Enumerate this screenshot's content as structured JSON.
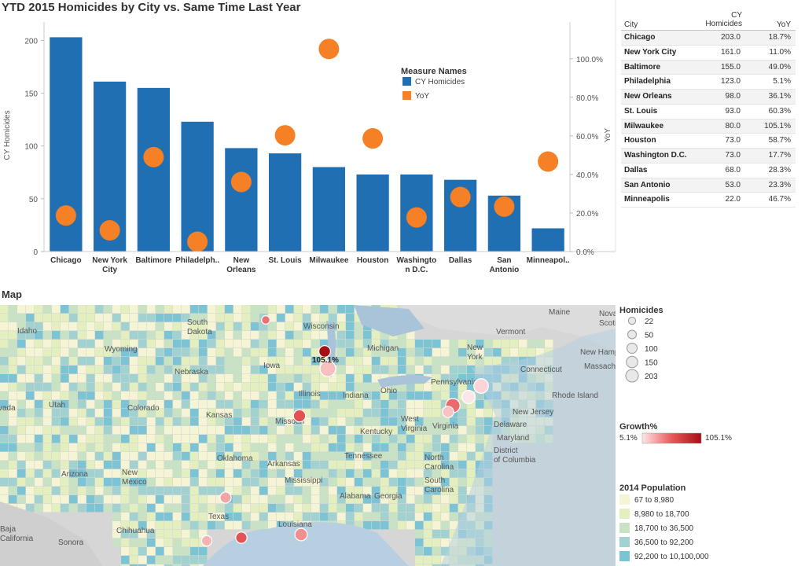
{
  "page": {
    "title": "YTD 2015 Homicides by City vs. Same Time Last Year",
    "map_title": "Map"
  },
  "colors": {
    "bar": "#1f6fb2",
    "yoy": "#f58025",
    "growth_low": "#fde6e6",
    "growth_high": "#a50f15"
  },
  "chart_data": {
    "type": "bar",
    "title": "YTD 2015 Homicides by City vs. Same Time Last Year",
    "categories": [
      "Chicago",
      "New York City",
      "Baltimore",
      "Philadelphia",
      "New Orleans",
      "St. Louis",
      "Milwaukee",
      "Houston",
      "Washington D.C.",
      "Dallas",
      "San Antonio",
      "Minneapolis"
    ],
    "category_labels": [
      [
        "Chicago"
      ],
      [
        "New York",
        "City"
      ],
      [
        "Baltimore"
      ],
      [
        "Philadelph.."
      ],
      [
        "New",
        "Orleans"
      ],
      [
        "St. Louis"
      ],
      [
        "Milwaukee"
      ],
      [
        "Houston"
      ],
      [
        "Washingto",
        "n D.C."
      ],
      [
        "Dallas"
      ],
      [
        "San",
        "Antonio"
      ],
      [
        "Minneapol.."
      ]
    ],
    "series": [
      {
        "name": "CY Homicides",
        "axis": "left",
        "mark": "bar",
        "values": [
          203,
          161,
          155,
          123,
          98,
          93,
          80,
          73,
          73,
          68,
          53,
          22
        ]
      },
      {
        "name": "YoY",
        "axis": "right",
        "mark": "circle",
        "values": [
          18.7,
          11.0,
          49.0,
          5.1,
          36.1,
          60.3,
          105.1,
          58.7,
          17.7,
          28.3,
          23.3,
          46.7
        ]
      }
    ],
    "ylabel": "CY Homicides",
    "ylim": [
      0,
      210
    ],
    "yticks": [
      0,
      50,
      100,
      150,
      200
    ],
    "y2label": "YoY",
    "y2lim": [
      0,
      115
    ],
    "y2ticks": [
      0,
      20,
      40,
      60,
      80,
      100
    ],
    "y2tick_labels": [
      "0.0%",
      "20.0%",
      "40.0%",
      "60.0%",
      "80.0%",
      "100.0%"
    ],
    "legend": {
      "title": "Measure Names",
      "items": [
        "CY Homicides",
        "YoY"
      ],
      "position": "top-right"
    }
  },
  "table": {
    "headers": {
      "city": "City",
      "cy_line1": "CY",
      "cy_line2": "Homicides",
      "yoy": "YoY"
    },
    "rows": [
      {
        "city": "Chicago",
        "cy": "203.0",
        "yoy": "18.7%"
      },
      {
        "city": "New York City",
        "cy": "161.0",
        "yoy": "11.0%"
      },
      {
        "city": "Baltimore",
        "cy": "155.0",
        "yoy": "49.0%"
      },
      {
        "city": "Philadelphia",
        "cy": "123.0",
        "yoy": "5.1%"
      },
      {
        "city": "New Orleans",
        "cy": "98.0",
        "yoy": "36.1%"
      },
      {
        "city": "St. Louis",
        "cy": "93.0",
        "yoy": "60.3%"
      },
      {
        "city": "Milwaukee",
        "cy": "80.0",
        "yoy": "105.1%"
      },
      {
        "city": "Houston",
        "cy": "73.0",
        "yoy": "58.7%"
      },
      {
        "city": "Washington D.C.",
        "cy": "73.0",
        "yoy": "17.7%"
      },
      {
        "city": "Dallas",
        "cy": "68.0",
        "yoy": "28.3%"
      },
      {
        "city": "San Antonio",
        "cy": "53.0",
        "yoy": "23.3%"
      },
      {
        "city": "Minneapolis",
        "cy": "22.0",
        "yoy": "46.7%"
      }
    ]
  },
  "map": {
    "callout": "105.1%",
    "place_labels": [
      "Idaho",
      "Wyoming",
      "South Dakota",
      "Nebraska",
      "Iowa",
      "Wisconsin",
      "Michigan",
      "Illinois",
      "Indiana",
      "Ohio",
      "Missouri",
      "Kansas",
      "Colorado",
      "Utah",
      "vada",
      "Arizona",
      "New Mexico",
      "Oklahoma",
      "Arkansas",
      "Texas",
      "Louisiana",
      "Tennessee",
      "Kentucky",
      "West Virginia",
      "Virginia",
      "North Carolina",
      "South Carolina",
      "Alabama",
      "Georgia",
      "Pennsylvania",
      "New York",
      "Vermont",
      "Maine",
      "Nova Scotia",
      "New Hampshire",
      "Massachusetts",
      "Connecticut",
      "Rhode Island",
      "New Jersey",
      "Delaware",
      "Maryland",
      "District of Columbia",
      "Baja California",
      "Sonora",
      "Chihuahua",
      "Mississippi"
    ],
    "cities": [
      {
        "name": "Chicago",
        "homicides": 203,
        "growth": 18.7
      },
      {
        "name": "New York City",
        "homicides": 161,
        "growth": 11.0
      },
      {
        "name": "Baltimore",
        "homicides": 155,
        "growth": 49.0
      },
      {
        "name": "Philadelphia",
        "homicides": 123,
        "growth": 5.1
      },
      {
        "name": "New Orleans",
        "homicides": 98,
        "growth": 36.1
      },
      {
        "name": "St. Louis",
        "homicides": 93,
        "growth": 60.3
      },
      {
        "name": "Milwaukee",
        "homicides": 80,
        "growth": 105.1
      },
      {
        "name": "Houston",
        "homicides": 73,
        "growth": 58.7
      },
      {
        "name": "Washington D.C.",
        "homicides": 73,
        "growth": 17.7
      },
      {
        "name": "Dallas",
        "homicides": 68,
        "growth": 28.3
      },
      {
        "name": "San Antonio",
        "homicides": 53,
        "growth": 23.3
      },
      {
        "name": "Minneapolis",
        "homicides": 22,
        "growth": 46.7
      }
    ]
  },
  "legends": {
    "homicides": {
      "title": "Homicides",
      "values": [
        22,
        50,
        100,
        150,
        203
      ],
      "labels": [
        "22",
        "50",
        "100",
        "150",
        "203"
      ]
    },
    "growth": {
      "title": "Growth%",
      "min": "5.1%",
      "max": "105.1%"
    },
    "population": {
      "title": "2014 Population",
      "items": [
        {
          "label": "67 to 8,980",
          "color": "#f5f5d6"
        },
        {
          "label": "8,980 to 18,700",
          "color": "#e3efbf"
        },
        {
          "label": "18,700 to 36,500",
          "color": "#c8e3c4"
        },
        {
          "label": "36,500 to 92,200",
          "color": "#a2d2cf"
        },
        {
          "label": "92,200 to 10,100,000",
          "color": "#7cc3d4"
        }
      ]
    }
  }
}
